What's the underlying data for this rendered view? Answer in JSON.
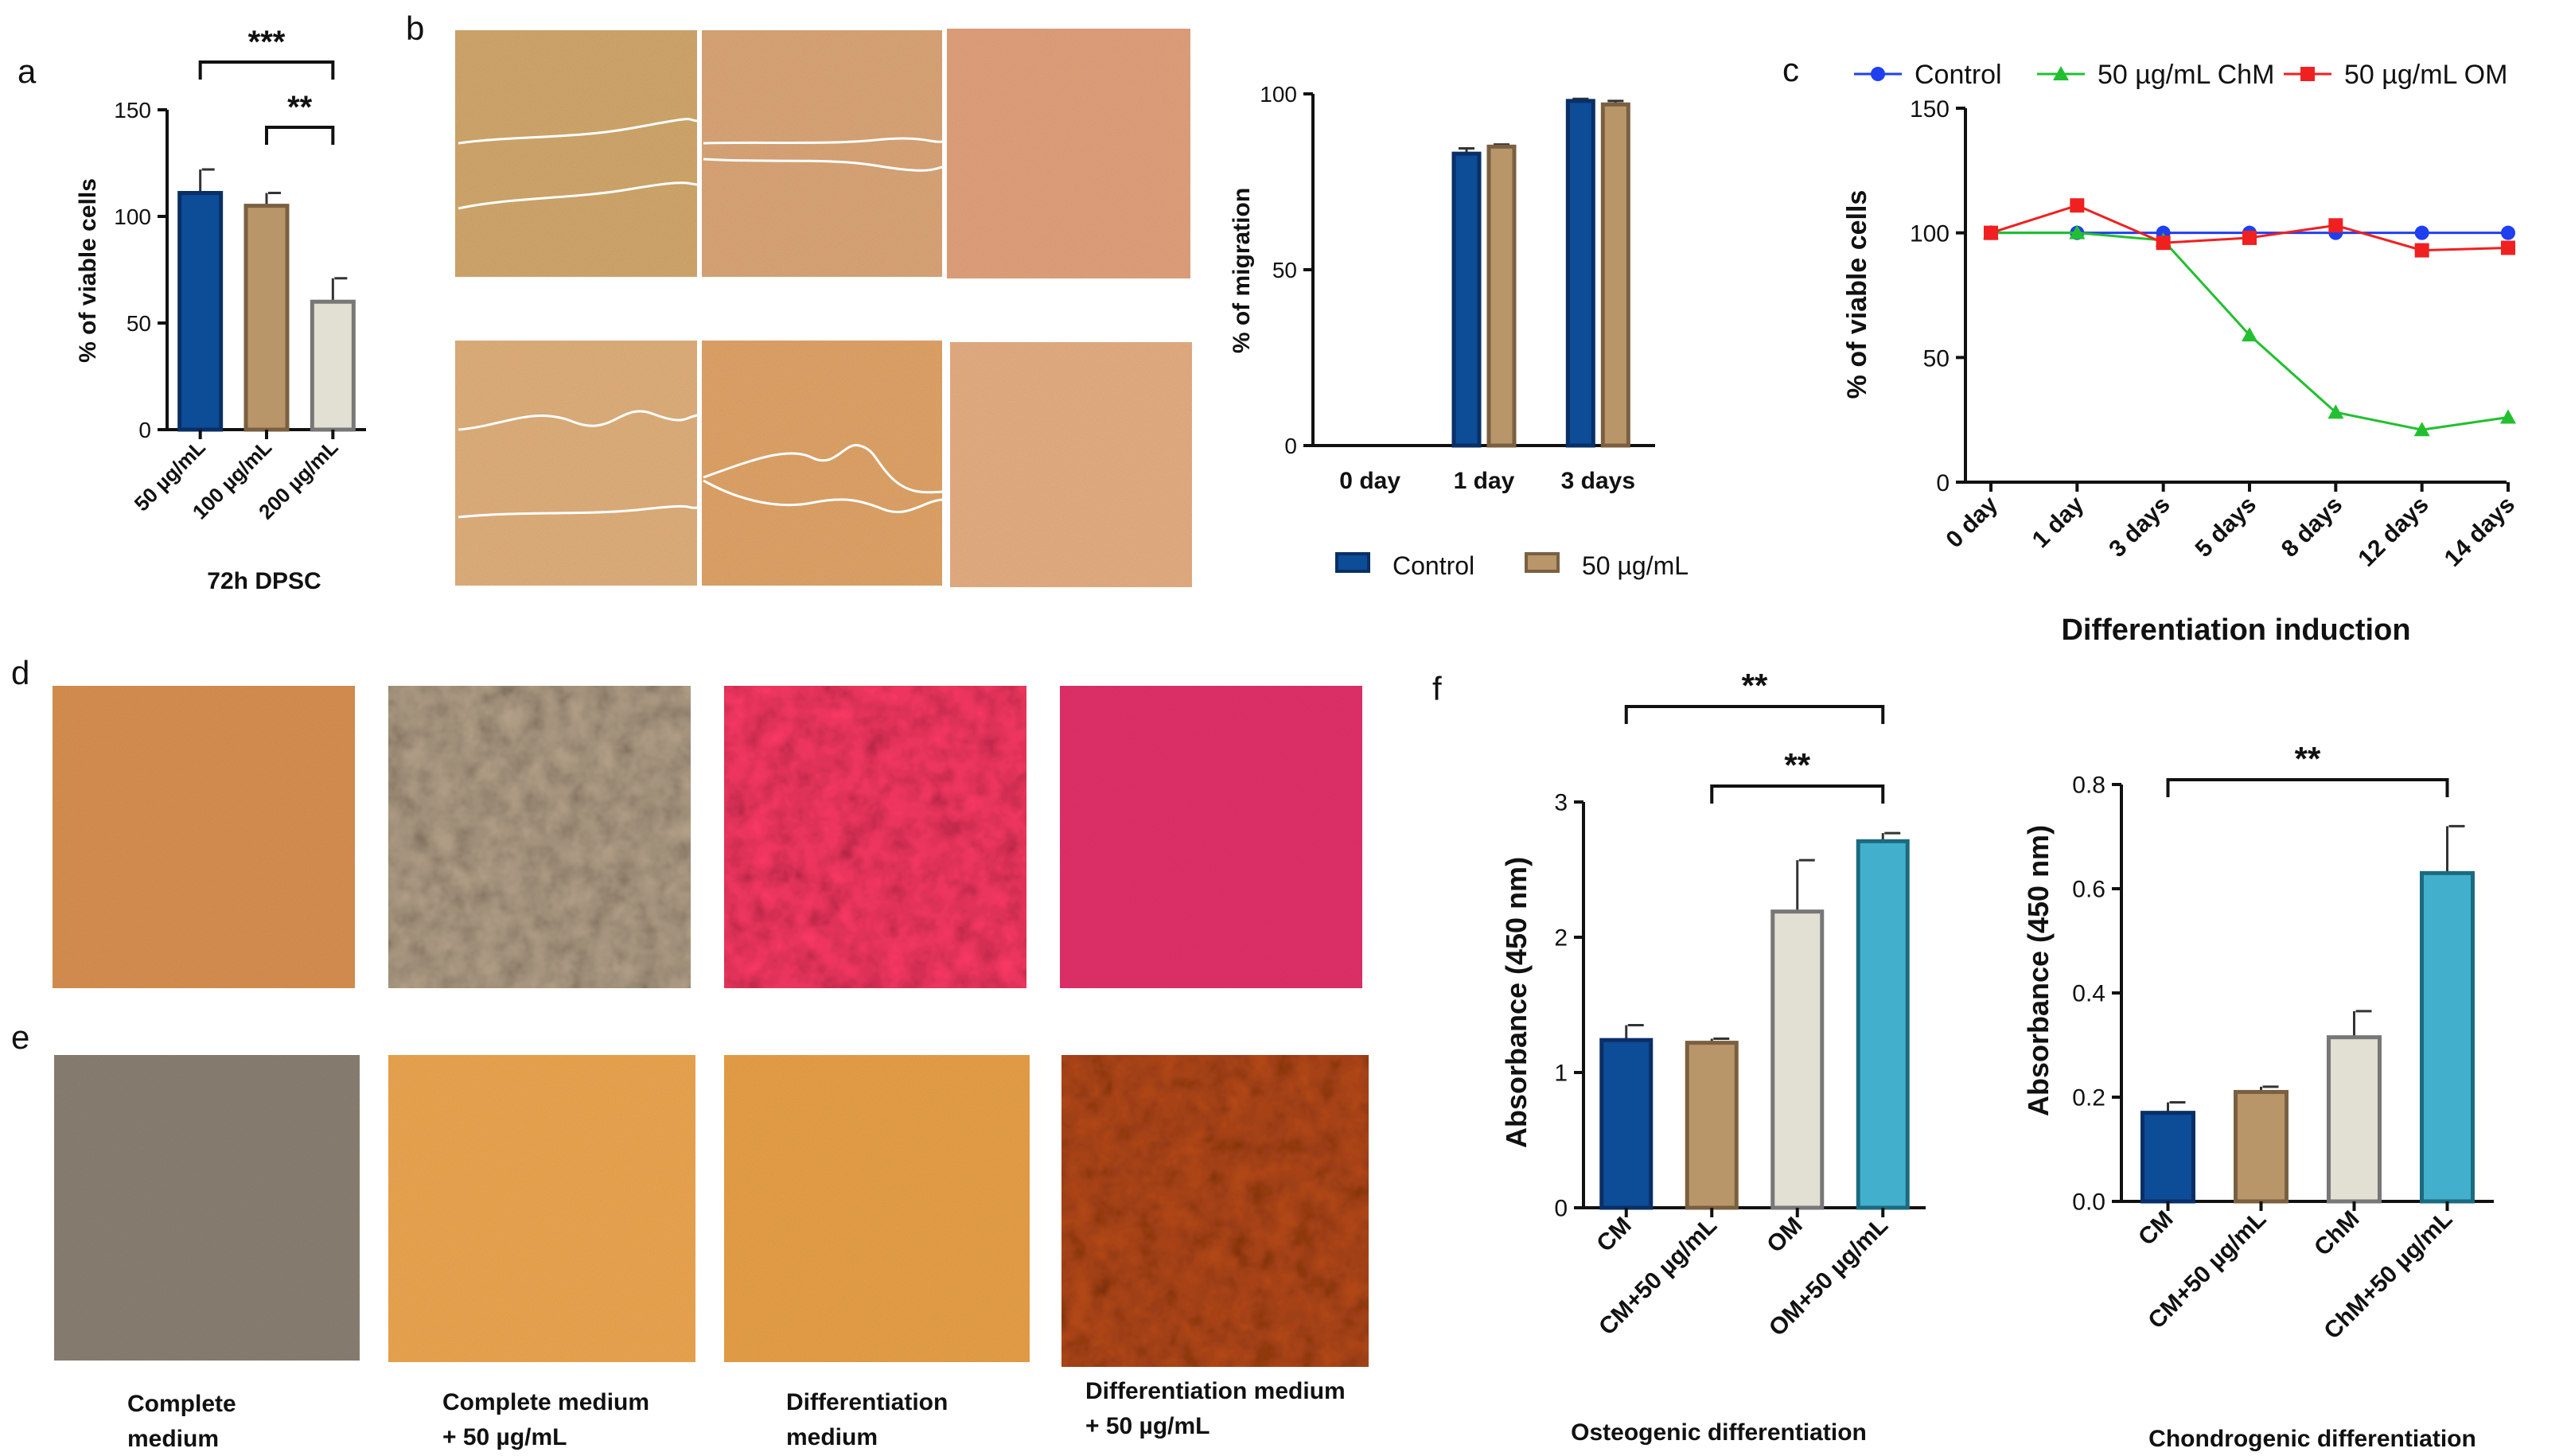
{
  "panel_labels": {
    "a": "a",
    "b": "b",
    "c": "c",
    "d": "d",
    "e": "e",
    "f": "f"
  },
  "colors": {
    "blue": "#0d4c96",
    "tan": "#b8966a",
    "beige": "#e2dfd3",
    "teal": "#42b0cc",
    "line_control": "#1f3ff0",
    "line_chm": "#22c030",
    "line_om": "#f02020"
  },
  "panel_a": {
    "chart_data": {
      "type": "bar",
      "categories": [
        "50 µg/mL",
        "100 µg/mL",
        "200 µg/mL"
      ],
      "values": [
        111,
        105,
        60
      ],
      "errors": [
        11,
        6,
        11
      ],
      "ylabel": "% of viable cells",
      "xlabel": "72h DPSC",
      "ylim": [
        0,
        150
      ],
      "yticks": [
        "0",
        "50",
        "100",
        "150"
      ],
      "significance": [
        {
          "from": 0,
          "to": 2,
          "label": "***"
        },
        {
          "from": 1,
          "to": 2,
          "label": "**"
        }
      ]
    }
  },
  "panel_b": {
    "images": [
      "wound-scratch-control-0-day",
      "wound-scratch-control-1-day",
      "wound-scratch-control-3-days",
      "wound-scratch-treated-0-day",
      "wound-scratch-treated-1-day",
      "wound-scratch-treated-3-days"
    ],
    "chart_data": {
      "type": "bar",
      "categories": [
        "0 day",
        "1 day",
        "3 days"
      ],
      "series": [
        {
          "name": "Control",
          "values": [
            0,
            83,
            98
          ],
          "errors": [
            0,
            1.5,
            0.6
          ]
        },
        {
          "name": "50 µg/mL",
          "values": [
            0,
            85,
            97
          ],
          "errors": [
            0,
            0.6,
            1
          ]
        }
      ],
      "ylabel": "% of migration",
      "ylim": [
        0,
        100
      ],
      "yticks": [
        "0",
        "50",
        "100"
      ],
      "legend": "bottom"
    }
  },
  "panel_c": {
    "chart_data": {
      "type": "line",
      "categories": [
        "0 day",
        "1 day",
        "3 days",
        "5 days",
        "8 days",
        "12 days",
        "14 days"
      ],
      "series": [
        {
          "name": "Control",
          "values": [
            100,
            100,
            100,
            100,
            100,
            100,
            100
          ]
        },
        {
          "name": "50 µg/mL ChM",
          "values": [
            100,
            100,
            97,
            59,
            28,
            21,
            26
          ]
        },
        {
          "name": "50 µg/mL OM",
          "values": [
            100,
            111,
            96,
            98,
            103,
            93,
            94
          ]
        }
      ],
      "ylabel": "% of viable cells",
      "xlabel": "Differentiation induction",
      "ylim": [
        0,
        150
      ],
      "yticks": [
        "0",
        "50",
        "100",
        "150"
      ],
      "legend": "top"
    }
  },
  "panel_d": {
    "images": [
      "alizarin-complete-medium",
      "alizarin-complete-medium-50",
      "alizarin-differentiation-medium",
      "alizarin-differentiation-medium-50"
    ]
  },
  "panel_e": {
    "images": [
      "alcian-complete-medium",
      "alcian-complete-medium-50",
      "alcian-differentiation-medium",
      "alcian-differentiation-medium-50"
    ],
    "captions": [
      {
        "line1": "Complete",
        "line2": "medium"
      },
      {
        "line1": "Complete medium",
        "line2": "+ 50 µg/mL"
      },
      {
        "line1": "Differentiation",
        "line2": "medium"
      },
      {
        "line1": "Differentiation medium",
        "line2": "+ 50 µg/mL"
      }
    ]
  },
  "panel_f_left": {
    "chart_data": {
      "type": "bar",
      "categories": [
        "CM",
        "CM+50 µg/mL",
        "OM",
        "OM+50 µg/mL"
      ],
      "values": [
        1.24,
        1.22,
        2.19,
        2.71
      ],
      "errors": [
        0.11,
        0.03,
        0.38,
        0.06
      ],
      "ylabel": "Absorbance (450 nm)",
      "xlabel": "Osteogenic differentiation",
      "ylim": [
        0,
        3
      ],
      "yticks": [
        "0",
        "1",
        "2",
        "3"
      ],
      "significance": [
        {
          "from": 0,
          "to": 3,
          "label": "**"
        },
        {
          "from": 1,
          "to": 3,
          "label": "**"
        }
      ]
    }
  },
  "panel_f_right": {
    "chart_data": {
      "type": "bar",
      "categories": [
        "CM",
        "CM+50 µg/mL",
        "ChM",
        "ChM+50 µg/mL"
      ],
      "values": [
        0.17,
        0.21,
        0.315,
        0.63
      ],
      "errors": [
        0.02,
        0.01,
        0.05,
        0.09
      ],
      "ylabel": "Absorbance (450 nm)",
      "xlabel": "Chondrogenic differentiation",
      "ylim": [
        0,
        0.8
      ],
      "yticks": [
        "0.0",
        "0.2",
        "0.4",
        "0.6",
        "0.8"
      ],
      "significance": [
        {
          "from": 0,
          "to": 3,
          "label": "**"
        }
      ]
    }
  }
}
